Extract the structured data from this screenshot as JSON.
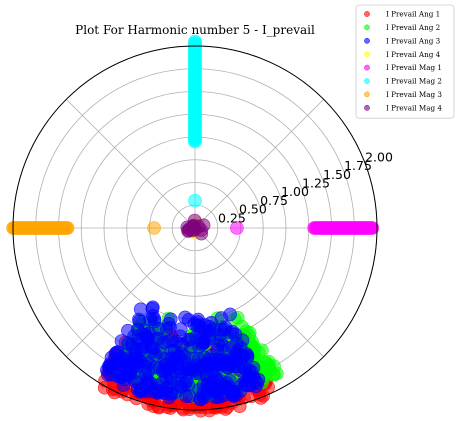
{
  "chart_data": {
    "type": "scatter",
    "projection": "polar",
    "title": "Plot For Harmonic number 5 - I_prevail",
    "radial_ticks": [
      "0.25",
      "0.50",
      "0.75",
      "1.00",
      "1.25",
      "1.50",
      "1.75",
      "2.00"
    ],
    "radial_tick_values": [
      0.25,
      0.5,
      0.75,
      1.0,
      1.25,
      1.5,
      1.75,
      2.0
    ],
    "rlim": [
      0,
      2.0
    ],
    "angular_grid_step_deg": 45,
    "grid": true,
    "legend_position": "top-right, outside plot",
    "marker_alpha": 0.55,
    "series": [
      {
        "name": "I Prevail Ang 1",
        "color": "#ff0000",
        "cluster": {
          "theta_deg": [
            238,
            296
          ],
          "r": [
            1.15,
            2.02
          ],
          "n": 260
        }
      },
      {
        "name": "I Prevail Ang 2",
        "color": "#00ff00",
        "cluster": {
          "theta_deg": [
            240,
            300
          ],
          "r": [
            1.0,
            1.85
          ],
          "n": 280
        }
      },
      {
        "name": "I Prevail Ang 3",
        "color": "#0000ff",
        "cluster": {
          "theta_deg": [
            236,
            293
          ],
          "r": [
            0.95,
            1.9
          ],
          "n": 320
        }
      },
      {
        "name": "I Prevail Ang 4",
        "color": "#ffff00",
        "cluster": {
          "theta_deg": [
            0,
            360
          ],
          "r": [
            0.0,
            0.05
          ],
          "n": 6
        }
      },
      {
        "name": "I Prevail Mag 1",
        "color": "#ff00ff",
        "points": [
          {
            "theta_deg": 0,
            "r": 0.46
          }
        ],
        "cluster": {
          "theta_deg": [
            0,
            0
          ],
          "r": [
            1.31,
            1.95
          ],
          "n": 60
        }
      },
      {
        "name": "I Prevail Mag 2",
        "color": "#00ffff",
        "points": [
          {
            "theta_deg": 90,
            "r": 0.3
          }
        ],
        "cluster": {
          "theta_deg": [
            90,
            90
          ],
          "r": [
            0.95,
            2.05
          ],
          "n": 90
        }
      },
      {
        "name": "I Prevail Mag 3",
        "color": "#ffa500",
        "points": [
          {
            "theta_deg": 180,
            "r": 0.45
          }
        ],
        "cluster": {
          "theta_deg": [
            180,
            180
          ],
          "r": [
            1.4,
            2.0
          ],
          "n": 60
        }
      },
      {
        "name": "I Prevail Mag 4",
        "color": "#800080",
        "cluster": {
          "theta_deg": [
            0,
            360
          ],
          "r": [
            0.0,
            0.1
          ],
          "n": 14
        }
      }
    ]
  }
}
